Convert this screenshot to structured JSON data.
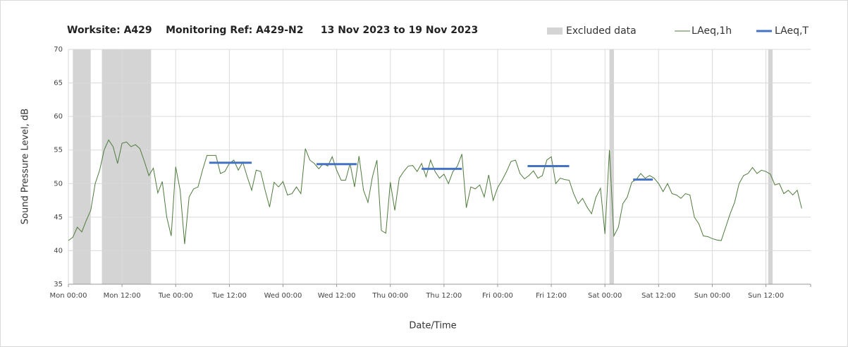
{
  "chart_data": {
    "type": "line",
    "title": "Worksite: A429    Monitoring Ref: A429-N2     13 Nov 2023 to 19 Nov 2023",
    "x_label": "Date/Time",
    "y_label": "Sound Pressure Level, dB",
    "xlim": [
      0,
      166
    ],
    "ylim": [
      35,
      70
    ],
    "xticks": [
      {
        "value": 0,
        "label": "Mon 00:00"
      },
      {
        "value": 12,
        "label": "Mon 12:00"
      },
      {
        "value": 24,
        "label": "Tue 00:00"
      },
      {
        "value": 36,
        "label": "Tue 12:00"
      },
      {
        "value": 48,
        "label": "Wed 00:00"
      },
      {
        "value": 60,
        "label": "Wed 12:00"
      },
      {
        "value": 72,
        "label": "Thu 00:00"
      },
      {
        "value": 84,
        "label": "Thu 12:00"
      },
      {
        "value": 96,
        "label": "Fri 00:00"
      },
      {
        "value": 108,
        "label": "Fri 12:00"
      },
      {
        "value": 120,
        "label": "Sat 00:00"
      },
      {
        "value": 132,
        "label": "Sat 12:00"
      },
      {
        "value": 144,
        "label": "Sun 00:00"
      },
      {
        "value": 156,
        "label": "Sun 12:00"
      }
    ],
    "yticks": [
      35,
      40,
      45,
      50,
      55,
      60,
      65,
      70
    ],
    "grid": true,
    "legend": "top-right",
    "excluded": {
      "name": "Excluded data",
      "color": "#d4d4d4",
      "ranges": [
        [
          1,
          5
        ],
        [
          7.5,
          18.5
        ],
        [
          121,
          122
        ],
        [
          156.5,
          157.5
        ]
      ]
    },
    "series": [
      {
        "name": "LAeq,1h",
        "color": "#4f7b3d",
        "x": [
          0,
          1,
          2,
          3,
          4,
          5,
          6,
          7,
          8,
          9,
          10,
          11,
          12,
          13,
          14,
          15,
          16,
          17,
          18,
          19,
          20,
          21,
          22,
          23,
          24,
          25,
          26,
          27,
          28,
          29,
          30,
          31,
          32,
          33,
          34,
          35,
          36,
          37,
          38,
          39,
          40,
          41,
          42,
          43,
          44,
          45,
          46,
          47,
          48,
          49,
          50,
          51,
          52,
          53,
          54,
          55,
          56,
          57,
          58,
          59,
          60,
          61,
          62,
          63,
          64,
          65,
          66,
          67,
          68,
          69,
          70,
          71,
          72,
          73,
          74,
          75,
          76,
          77,
          78,
          79,
          80,
          81,
          82,
          83,
          84,
          85,
          86,
          87,
          88,
          89,
          90,
          91,
          92,
          93,
          94,
          95,
          96,
          97,
          98,
          99,
          100,
          101,
          102,
          103,
          104,
          105,
          106,
          107,
          108,
          109,
          110,
          111,
          112,
          113,
          114,
          115,
          116,
          117,
          118,
          119,
          120,
          121,
          122,
          123,
          124,
          125,
          126,
          127,
          128,
          129,
          130,
          131,
          132,
          133,
          134,
          135,
          136,
          137,
          138,
          139,
          140,
          141,
          142,
          143,
          144,
          145,
          146,
          147,
          148,
          149,
          150,
          151,
          152,
          153,
          154,
          155,
          156,
          157,
          158,
          159,
          160,
          161,
          162,
          163,
          164
        ],
        "values": [
          41.5,
          42,
          43.5,
          42.8,
          44.5,
          46,
          50,
          52,
          55,
          56.5,
          55.5,
          53,
          56,
          56.2,
          55.5,
          55.8,
          55.2,
          53.3,
          51.2,
          52.3,
          48.6,
          50.3,
          45,
          42.2,
          52.5,
          49,
          41,
          48,
          49.2,
          49.5,
          52,
          54.2,
          54.2,
          54.2,
          51.5,
          51.8,
          53,
          53.5,
          52,
          53.2,
          51,
          49,
          52,
          51.8,
          49,
          46.5,
          50.2,
          49.5,
          50.3,
          48.3,
          48.5,
          49.5,
          48.5,
          55.2,
          53.5,
          53,
          52.2,
          53,
          52.6,
          54,
          52,
          50.5,
          50.5,
          53,
          49.5,
          54.1,
          49,
          47.2,
          51,
          53.5,
          43,
          42.6,
          50.2,
          46,
          50.8,
          51.8,
          52.6,
          52.7,
          51.8,
          53,
          51,
          53.5,
          51.8,
          50.8,
          51.4,
          50,
          51.8,
          52.6,
          54.4,
          46.4,
          49.5,
          49.2,
          49.8,
          48,
          51.3,
          47.5,
          49.4,
          50.5,
          51.8,
          53.3,
          53.5,
          51.5,
          50.7,
          51.2,
          51.9,
          50.8,
          51.2,
          53.5,
          54,
          50,
          50.8,
          50.6,
          50.5,
          48.5,
          47,
          47.8,
          46.5,
          45.5,
          48,
          49.3,
          42.5,
          55,
          42.2,
          43.5,
          47,
          48,
          50.2,
          50.6,
          51.5,
          50.8,
          51.2,
          50.8,
          50,
          48.8,
          50,
          48.5,
          48.3,
          47.8,
          48.5,
          48.3,
          45,
          44,
          42.2,
          42.1,
          41.8,
          41.6,
          41.5,
          43.5,
          45.5,
          47.2,
          50,
          51.2,
          51.5,
          52.4,
          51.5,
          52,
          51.8,
          51.4,
          49.8,
          50,
          48.5,
          49,
          48.3,
          49,
          46.3
        ]
      },
      {
        "name": "LAeq,T",
        "color": "#4472c4",
        "segments": [
          {
            "x": [
              31.5,
              41
            ],
            "value": 53.1
          },
          {
            "x": [
              55.5,
              64.5
            ],
            "value": 52.9
          },
          {
            "x": [
              79,
              88
            ],
            "value": 52.2
          },
          {
            "x": [
              102.7,
              112
            ],
            "value": 52.6
          },
          {
            "x": [
              126.3,
              130.7
            ],
            "value": 50.6
          }
        ]
      }
    ]
  }
}
